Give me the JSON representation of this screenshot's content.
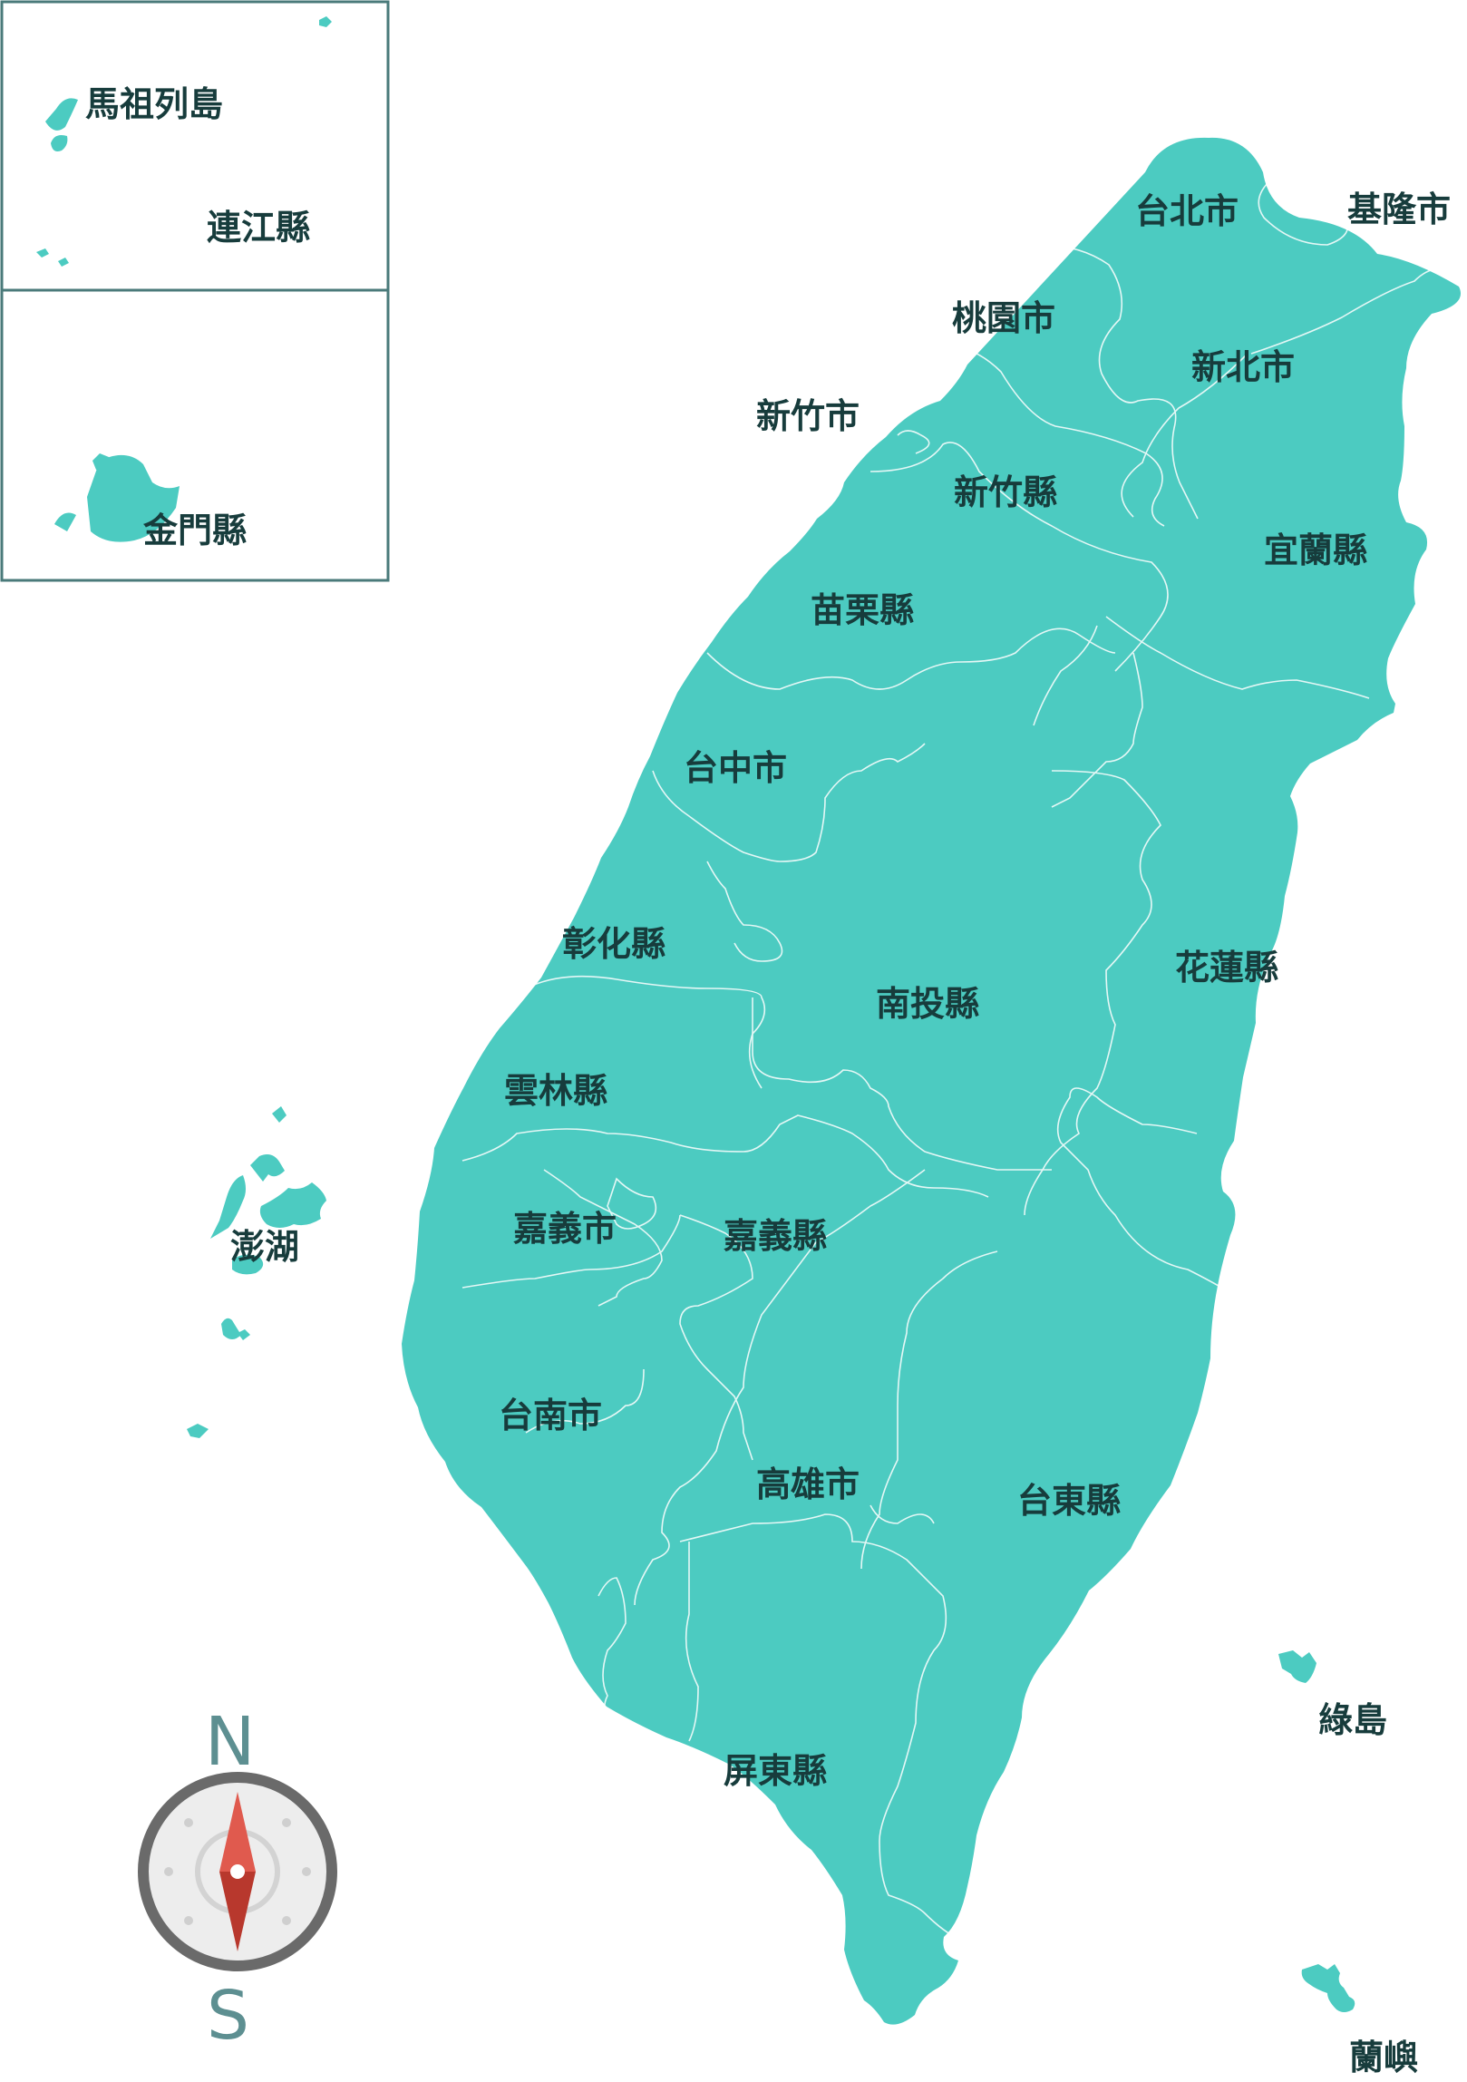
{
  "insets": {
    "matsu_island_label": "馬祖列島",
    "lienchiang_label": "連江縣",
    "kinmen_label": "金門縣"
  },
  "regions": {
    "taipei": "台北市",
    "keelung": "基隆市",
    "taoyuan": "桃園市",
    "newtaipei": "新北市",
    "hsinchu_city": "新竹市",
    "hsinchu_county": "新竹縣",
    "yilan": "宜蘭縣",
    "miaoli": "苗栗縣",
    "taichung": "台中市",
    "changhua": "彰化縣",
    "nantou": "南投縣",
    "hualien": "花蓮縣",
    "yunlin": "雲林縣",
    "chiayi_city": "嘉義市",
    "chiayi_county": "嘉義縣",
    "tainan": "台南市",
    "kaohsiung": "高雄市",
    "taitung": "台東縣",
    "pingtung": "屏東縣",
    "penghu": "澎湖",
    "green_island": "綠島",
    "orchid_island": "蘭嶼"
  },
  "compass": {
    "north": "N",
    "south": "S"
  },
  "colors": {
    "land": "#4ccbc1",
    "label": "#173c3c",
    "inset_border": "#4a7a7a",
    "compass_needle": "#d9473b"
  }
}
